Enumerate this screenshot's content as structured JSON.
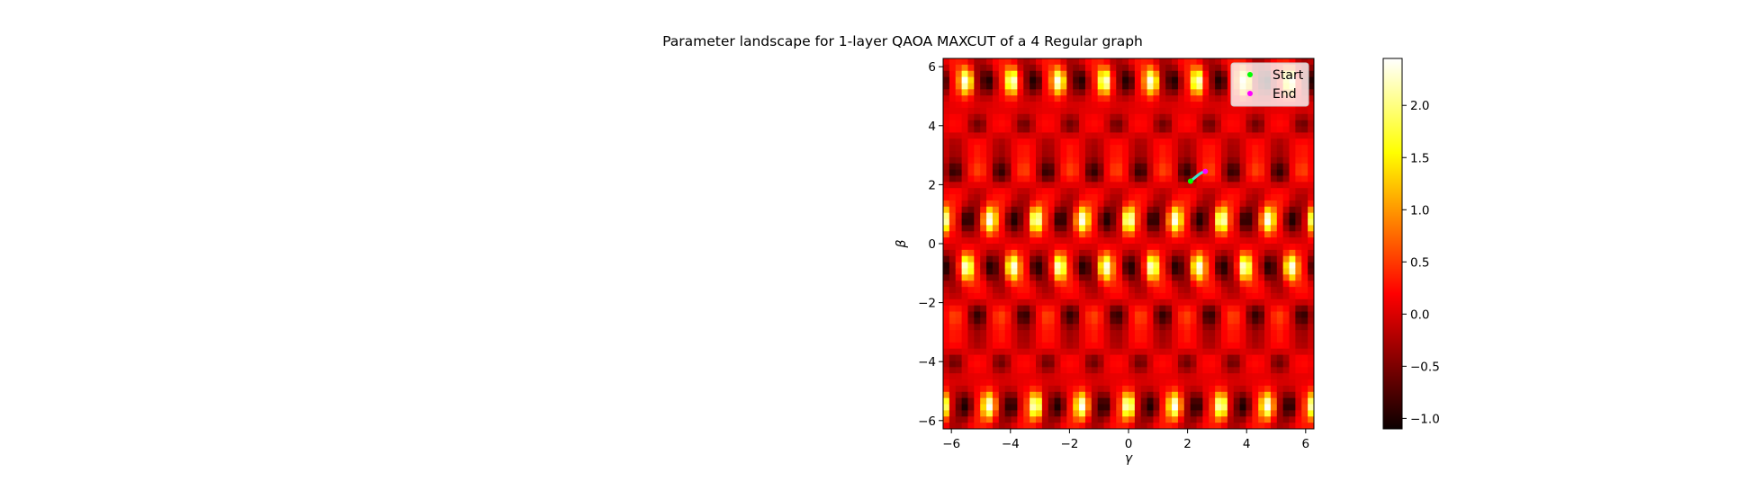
{
  "chart_data": {
    "type": "heatmap",
    "title": "Parameter landscape for 1-layer QAOA MAXCUT of a 4 Regular graph",
    "xlabel": "γ",
    "ylabel": "β",
    "xlim": [
      -6.28,
      6.28
    ],
    "ylim": [
      -6.28,
      6.28
    ],
    "xticks": [
      -6,
      -4,
      -2,
      0,
      2,
      4,
      6
    ],
    "yticks": [
      -6,
      -4,
      -2,
      0,
      2,
      4,
      6
    ],
    "xtick_labels": [
      "−6",
      "−4",
      "−2",
      "0",
      "2",
      "4",
      "6"
    ],
    "ytick_labels": [
      "−6",
      "−4",
      "−2",
      "0",
      "2",
      "4",
      "6"
    ],
    "grid_size": 60,
    "colormap": "hot",
    "colorbar": {
      "vmin": -1.1,
      "vmax": 2.45,
      "ticks": [
        -1.0,
        -0.5,
        0.0,
        0.5,
        1.0,
        1.5,
        2.0
      ],
      "tick_labels": [
        "−1.0",
        "−0.5",
        "0.0",
        "0.5",
        "1.0",
        "1.5",
        "2.0"
      ]
    },
    "landscape_peaks": {
      "gamma_period": 1.571,
      "beta_centers": [
        -5.5,
        -0.8,
        0.8,
        5.5
      ],
      "peak_value": 2.45,
      "trough_beta_centers": [
        -4.0,
        -2.4,
        2.4,
        4.0
      ],
      "trough_value": -1.1
    },
    "trajectory": {
      "color": "#40e0d0",
      "points": [
        [
          2.1,
          2.12
        ],
        [
          2.2,
          2.2
        ],
        [
          2.3,
          2.28
        ],
        [
          2.4,
          2.36
        ],
        [
          2.5,
          2.42
        ],
        [
          2.6,
          2.45
        ]
      ]
    },
    "series": [
      {
        "name": "Start",
        "color": "#00ff00",
        "x": [
          2.1
        ],
        "y": [
          2.12
        ]
      },
      {
        "name": "End",
        "color": "#ff00ff",
        "x": [
          2.6
        ],
        "y": [
          2.45
        ]
      }
    ],
    "legend_position": "top-right"
  }
}
